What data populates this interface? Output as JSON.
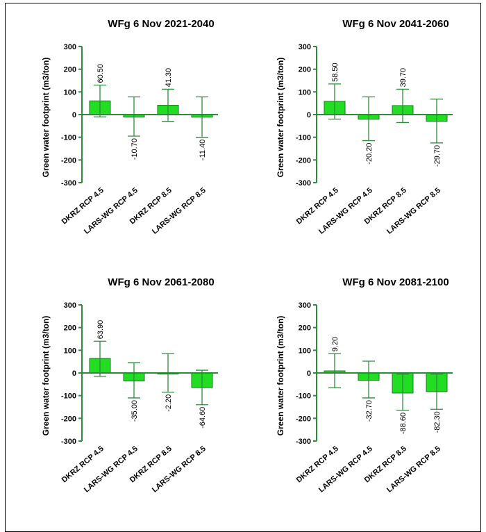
{
  "page": {
    "bar_color": "#22dd22",
    "axis_color": "#2e8b3a",
    "errorbar_color": "#2e8b3a"
  },
  "chart_data": [
    {
      "type": "bar",
      "title": "WFg 6 Nov 2021-2040",
      "ylabel": "Green water footprint (m3/ton)",
      "ylim": [
        -300,
        300
      ],
      "yticks": [
        300,
        200,
        100,
        0,
        -100,
        -200,
        -300
      ],
      "categories": [
        "DKRZ RCP 4.5",
        "LARS-WG RCP 4.5",
        "DKRZ RCP 8.5",
        "LARS-WG RCP 8.5"
      ],
      "values": [
        60.5,
        -10.7,
        41.3,
        -11.4
      ],
      "value_labels": [
        "60.50",
        "-10.70",
        "41.30",
        "-11.40"
      ],
      "error_low": [
        -10,
        -95,
        -30,
        -100
      ],
      "error_high": [
        130,
        78,
        112,
        78
      ]
    },
    {
      "type": "bar",
      "title": "WFg 6 Nov 2041-2060",
      "ylabel": "Green water footprint (m3/ton)",
      "ylim": [
        -300,
        300
      ],
      "yticks": [
        300,
        200,
        100,
        0,
        -100,
        -200,
        -300
      ],
      "categories": [
        "DKRZ RCP 4.5",
        "LARS-WG RCP 4.5",
        "DKRZ RCP 8.5",
        "LARS-WG RCP 8.5"
      ],
      "values": [
        58.5,
        -20.2,
        39.7,
        -29.7
      ],
      "value_labels": [
        "58.50",
        "-20.20",
        "39.70",
        "-29.70"
      ],
      "error_low": [
        -20,
        -115,
        -35,
        -125
      ],
      "error_high": [
        135,
        78,
        112,
        68
      ]
    },
    {
      "type": "bar",
      "title": "WFg 6 Nov 2061-2080",
      "ylabel": "Green water footprint (m3/ton)",
      "ylim": [
        -300,
        300
      ],
      "yticks": [
        300,
        200,
        100,
        0,
        -100,
        -200,
        -300
      ],
      "categories": [
        "DKRZ RCP 4.5",
        "LARS-WG RCP 4.5",
        "DKRZ RCP 8.5",
        "LARS-WG RCP 8.5"
      ],
      "values": [
        63.9,
        -35.0,
        -2.2,
        -64.6
      ],
      "value_labels": [
        "63.90",
        "-35.00",
        "-2.20",
        "-64.60"
      ],
      "error_low": [
        -15,
        -110,
        -85,
        -140
      ],
      "error_high": [
        140,
        45,
        85,
        12
      ]
    },
    {
      "type": "bar",
      "title": "WFg 6 Nov 2081-2100",
      "ylabel": "Green water footprint (m3/ton)",
      "ylim": [
        -300,
        300
      ],
      "yticks": [
        300,
        200,
        100,
        0,
        -100,
        -200,
        -300
      ],
      "categories": [
        "DKRZ RCP 4.5",
        "LARS-WG RCP 4.5",
        "DKRZ RCP 8.5",
        "LARS-WG RCP 8.5"
      ],
      "values": [
        9.2,
        -32.7,
        -88.6,
        -82.3
      ],
      "value_labels": [
        "9.20",
        "-32.70",
        "-88.60",
        "-82.30"
      ],
      "error_low": [
        -65,
        -110,
        -165,
        -160
      ],
      "error_high": [
        85,
        52,
        -5,
        -5
      ]
    }
  ]
}
